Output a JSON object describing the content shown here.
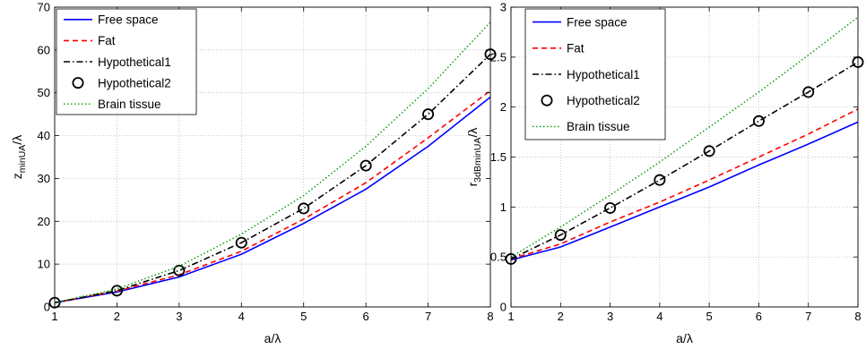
{
  "chart_data": [
    {
      "type": "line",
      "title": "",
      "xlabel": "a/λ",
      "ylabel": "z_minUA/λ",
      "ylabel_main": "z",
      "ylabel_sub": "minUA",
      "ylabel_tail": "/λ",
      "xlim": [
        1,
        8
      ],
      "ylim": [
        0,
        70
      ],
      "xticks": [
        1,
        2,
        3,
        4,
        5,
        6,
        7,
        8
      ],
      "yticks": [
        0,
        10,
        20,
        30,
        40,
        50,
        60,
        70
      ],
      "x": [
        1,
        2,
        3,
        4,
        5,
        6,
        7,
        8
      ],
      "grid": true,
      "legend_position": "top-left",
      "series": [
        {
          "name": "Free space",
          "color": "#0000ff",
          "style": "solid",
          "marker": "none",
          "values": [
            1,
            3.5,
            7,
            12.3,
            19.5,
            27.5,
            37.5,
            49
          ]
        },
        {
          "name": "Fat",
          "color": "#ff0000",
          "style": "dashed",
          "marker": "none",
          "values": [
            1,
            3.7,
            7.5,
            13,
            20.5,
            29,
            39.5,
            50.5
          ]
        },
        {
          "name": "Hypothetical1",
          "color": "#000000",
          "style": "dashdot",
          "marker": "none",
          "values": [
            1,
            3.8,
            8.5,
            15,
            23,
            33,
            45,
            59
          ]
        },
        {
          "name": "Hypothetical2",
          "color": "#000000",
          "style": "none",
          "marker": "circle",
          "values": [
            1,
            3.8,
            8.5,
            15,
            23,
            33,
            45,
            59
          ]
        },
        {
          "name": "Brain tissue",
          "color": "#009900",
          "style": "dotted",
          "marker": "none",
          "values": [
            1,
            4.2,
            9.5,
            17,
            26,
            37.5,
            51,
            66.5
          ]
        }
      ]
    },
    {
      "type": "line",
      "title": "",
      "xlabel": "a/λ",
      "ylabel": "r_3dBminUA/λ",
      "ylabel_main": "r",
      "ylabel_sub": "3dBminUA",
      "ylabel_tail": "/λ",
      "xlim": [
        1,
        8
      ],
      "ylim": [
        0,
        3
      ],
      "xticks": [
        1,
        2,
        3,
        4,
        5,
        6,
        7,
        8
      ],
      "yticks": [
        0,
        0.5,
        1,
        1.5,
        2,
        2.5,
        3
      ],
      "x": [
        1,
        2,
        3,
        4,
        5,
        6,
        7,
        8
      ],
      "grid": true,
      "legend_position": "top-left",
      "series": [
        {
          "name": "Free space",
          "color": "#0000ff",
          "style": "solid",
          "marker": "none",
          "values": [
            0.47,
            0.6,
            0.8,
            1.0,
            1.2,
            1.42,
            1.63,
            1.85
          ]
        },
        {
          "name": "Fat",
          "color": "#ff0000",
          "style": "dashed",
          "marker": "none",
          "values": [
            0.48,
            0.63,
            0.85,
            1.05,
            1.27,
            1.5,
            1.73,
            1.98
          ]
        },
        {
          "name": "Hypothetical1",
          "color": "#000000",
          "style": "dashdot",
          "marker": "none",
          "values": [
            0.48,
            0.72,
            0.99,
            1.27,
            1.56,
            1.86,
            2.15,
            2.45
          ]
        },
        {
          "name": "Hypothetical2",
          "color": "#000000",
          "style": "none",
          "marker": "circle",
          "values": [
            0.48,
            0.72,
            0.99,
            1.27,
            1.56,
            1.86,
            2.15,
            2.45
          ]
        },
        {
          "name": "Brain tissue",
          "color": "#009900",
          "style": "dotted",
          "marker": "none",
          "values": [
            0.5,
            0.8,
            1.12,
            1.45,
            1.8,
            2.15,
            2.52,
            2.9
          ]
        }
      ]
    }
  ]
}
